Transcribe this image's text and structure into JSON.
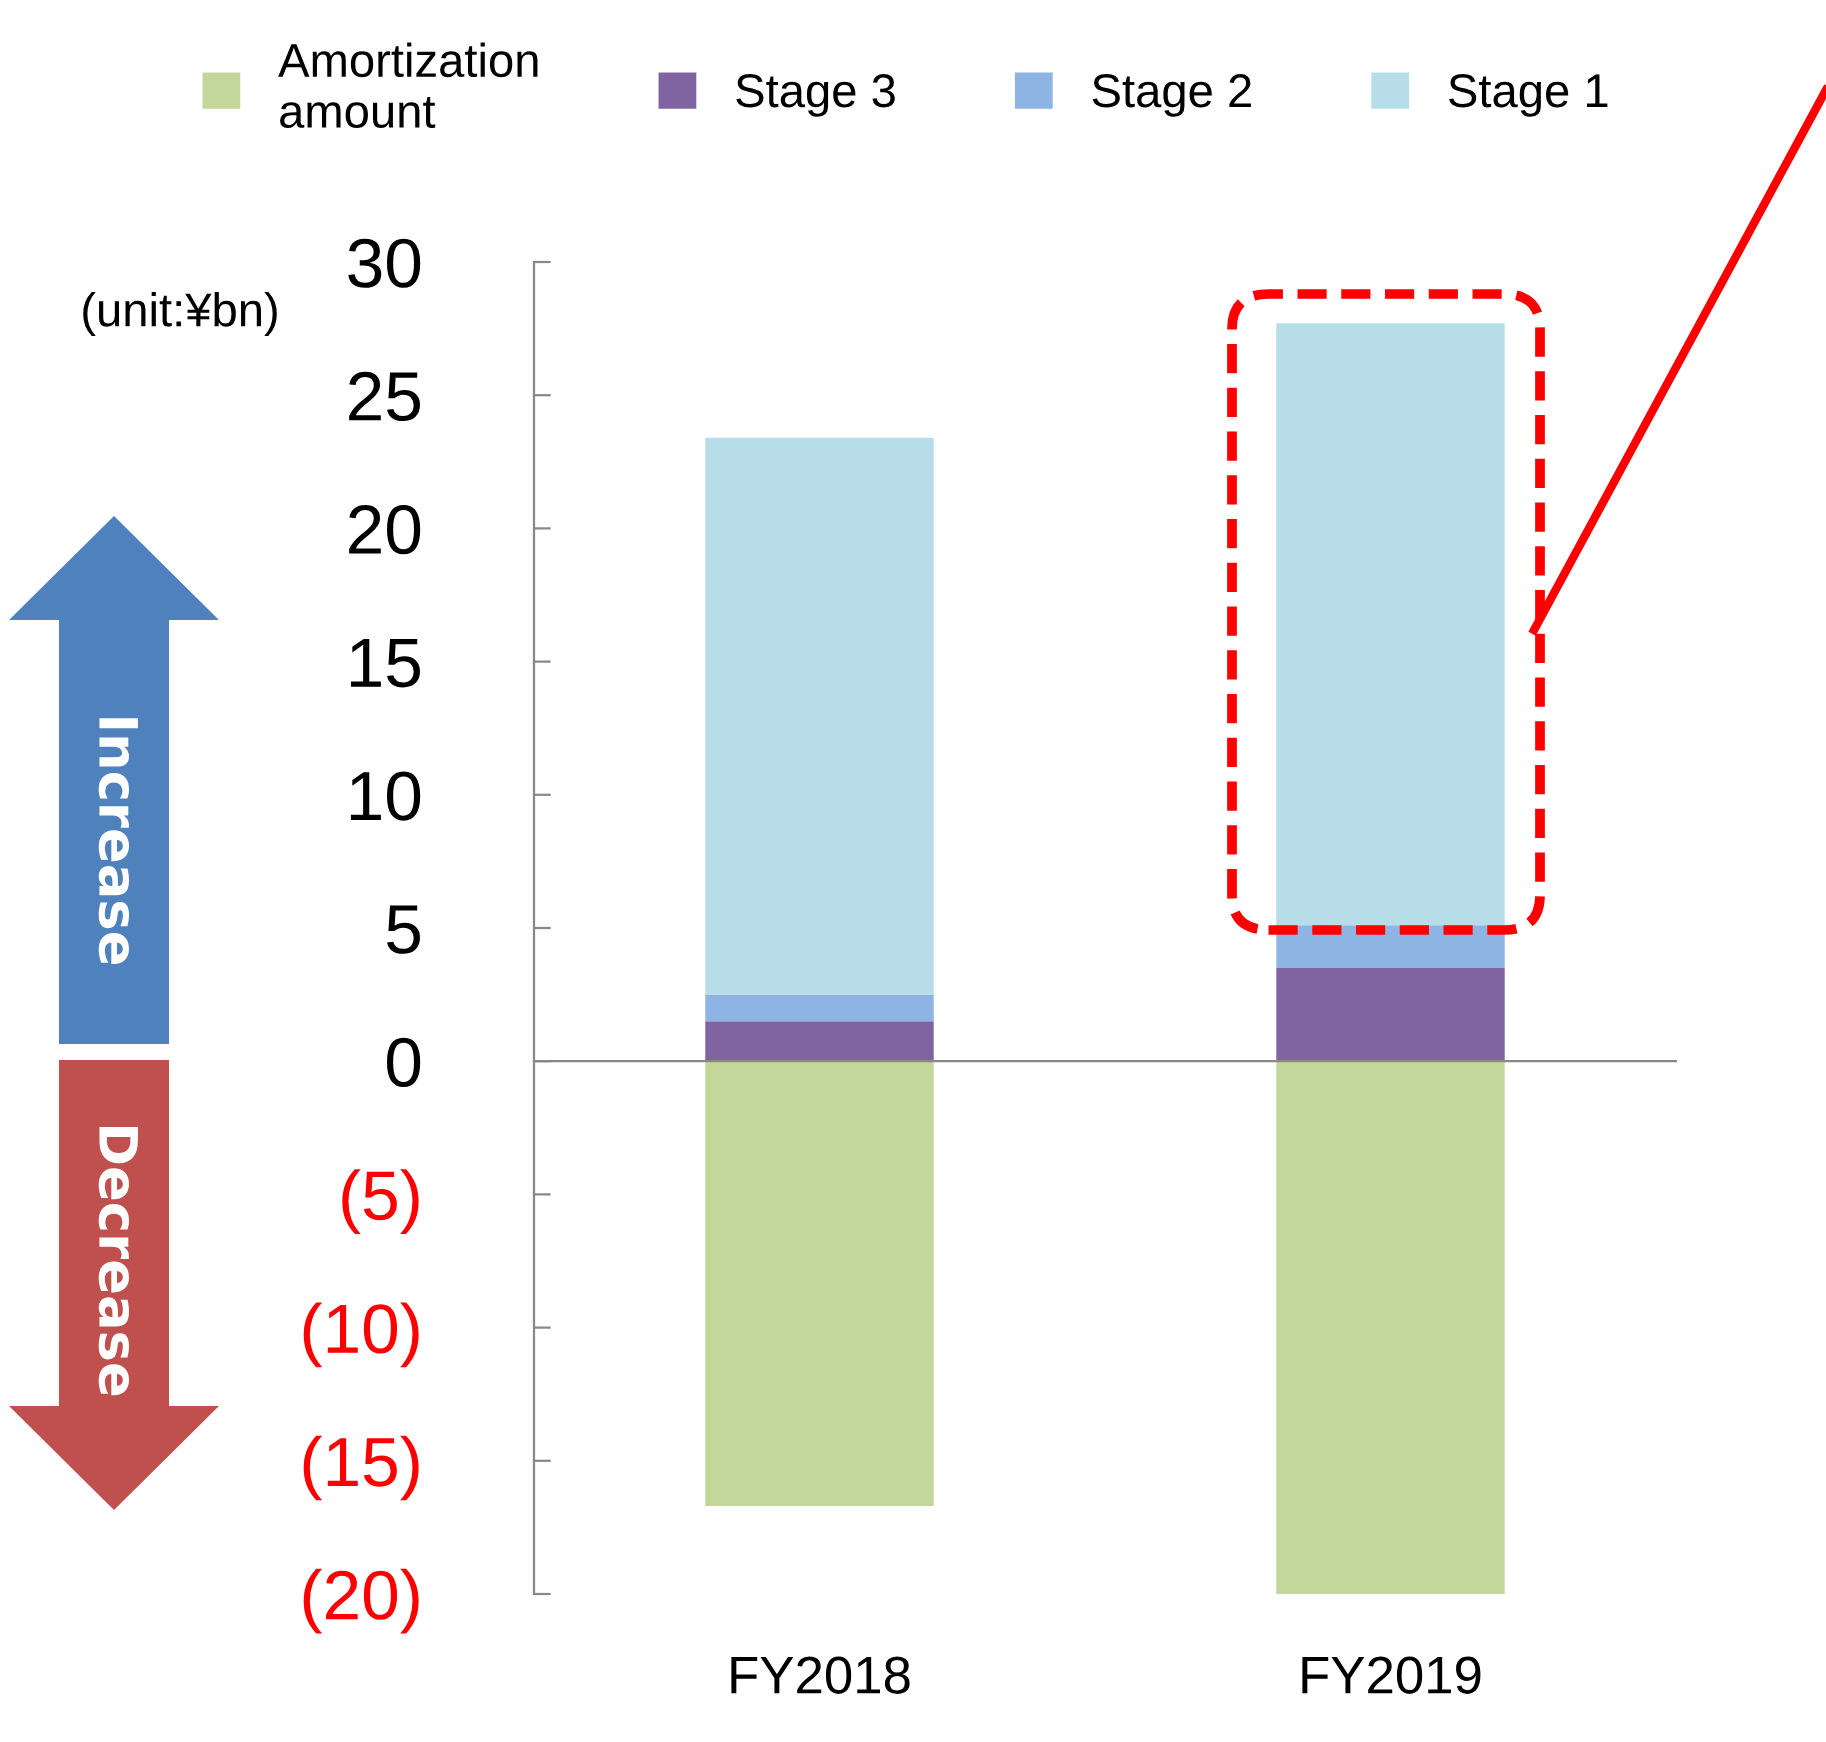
{
  "chart_data": {
    "type": "bar",
    "stacked": true,
    "categories": [
      "FY2018",
      "FY2019"
    ],
    "series": [
      {
        "name": "Amortization\namount",
        "color": "#c4d79b",
        "values": [
          -16.7,
          -20.0
        ]
      },
      {
        "name": "Stage 3",
        "color": "#8064a2",
        "values": [
          1.5,
          3.5
        ]
      },
      {
        "name": "Stage 2",
        "color": "#8db4e2",
        "values": [
          1.0,
          1.6
        ]
      },
      {
        "name": "Stage 1",
        "color": "#b7dee8",
        "values": [
          20.9,
          22.6
        ]
      }
    ],
    "ylim": [
      -20,
      30
    ],
    "yticks": [
      {
        "value": -20,
        "label": "(20)"
      },
      {
        "value": -15,
        "label": "(15)"
      },
      {
        "value": -10,
        "label": "(10)"
      },
      {
        "value": -5,
        "label": "(5)"
      },
      0,
      5,
      10,
      15,
      20,
      25,
      30
    ],
    "legend": "top",
    "annotations": [
      "(unit:¥bn)",
      "Increase",
      "Decrease"
    ]
  }
}
